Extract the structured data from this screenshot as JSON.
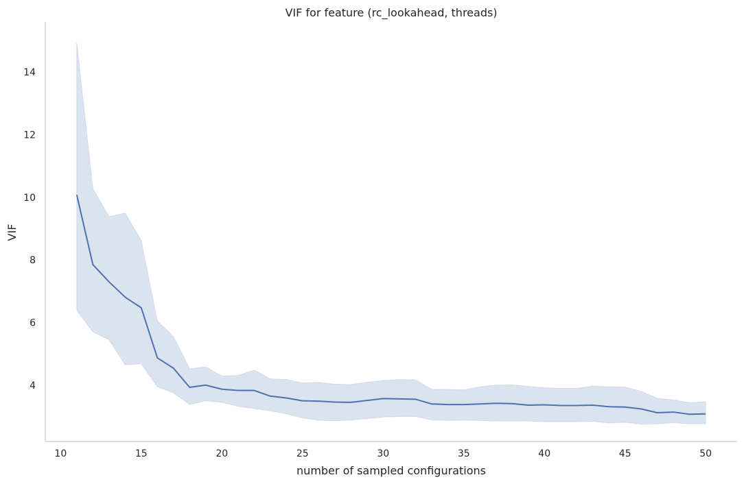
{
  "chart_data": {
    "type": "line",
    "title": "VIF for feature (rc_lookahead, threads)",
    "xlabel": "number of sampled configurations",
    "ylabel": "VIF",
    "xlim": [
      9.05,
      51.95
    ],
    "ylim": [
      2.2,
      15.6
    ],
    "x_ticks": [
      10,
      15,
      20,
      25,
      30,
      35,
      40,
      45,
      50
    ],
    "y_ticks": [
      4,
      6,
      8,
      10,
      12,
      14
    ],
    "grid": false,
    "color": "#4c72b0",
    "series": [
      {
        "x": [
          11,
          12,
          13,
          14,
          15,
          16,
          17,
          18,
          19,
          20,
          21,
          22,
          23,
          24,
          25,
          26,
          27,
          28,
          29,
          30,
          31,
          32,
          33,
          34,
          35,
          36,
          37,
          38,
          39,
          40,
          41,
          42,
          43,
          44,
          45,
          46,
          47,
          48,
          49,
          50
        ],
        "mean": [
          10.08,
          7.85,
          7.3,
          6.81,
          6.47,
          4.87,
          4.54,
          3.93,
          4.0,
          3.87,
          3.83,
          3.83,
          3.65,
          3.59,
          3.5,
          3.49,
          3.46,
          3.45,
          3.51,
          3.57,
          3.56,
          3.55,
          3.4,
          3.38,
          3.38,
          3.4,
          3.42,
          3.41,
          3.36,
          3.37,
          3.35,
          3.35,
          3.36,
          3.31,
          3.3,
          3.24,
          3.12,
          3.14,
          3.07,
          3.08
        ],
        "lower": [
          6.38,
          5.7,
          5.45,
          4.65,
          4.68,
          3.95,
          3.75,
          3.38,
          3.5,
          3.45,
          3.32,
          3.25,
          3.18,
          3.08,
          2.95,
          2.88,
          2.86,
          2.88,
          2.93,
          2.98,
          3.0,
          3.0,
          2.89,
          2.87,
          2.88,
          2.87,
          2.85,
          2.86,
          2.85,
          2.83,
          2.83,
          2.83,
          2.84,
          2.79,
          2.81,
          2.75,
          2.76,
          2.8,
          2.76,
          2.77
        ],
        "upper": [
          14.95,
          10.28,
          9.38,
          9.5,
          8.62,
          6.05,
          5.55,
          4.52,
          4.58,
          4.29,
          4.31,
          4.48,
          4.2,
          4.18,
          4.07,
          4.09,
          4.03,
          4.02,
          4.09,
          4.15,
          4.18,
          4.17,
          3.87,
          3.86,
          3.85,
          3.95,
          4.0,
          4.01,
          3.96,
          3.92,
          3.9,
          3.9,
          3.97,
          3.95,
          3.94,
          3.8,
          3.58,
          3.53,
          3.44,
          3.47
        ]
      }
    ]
  }
}
